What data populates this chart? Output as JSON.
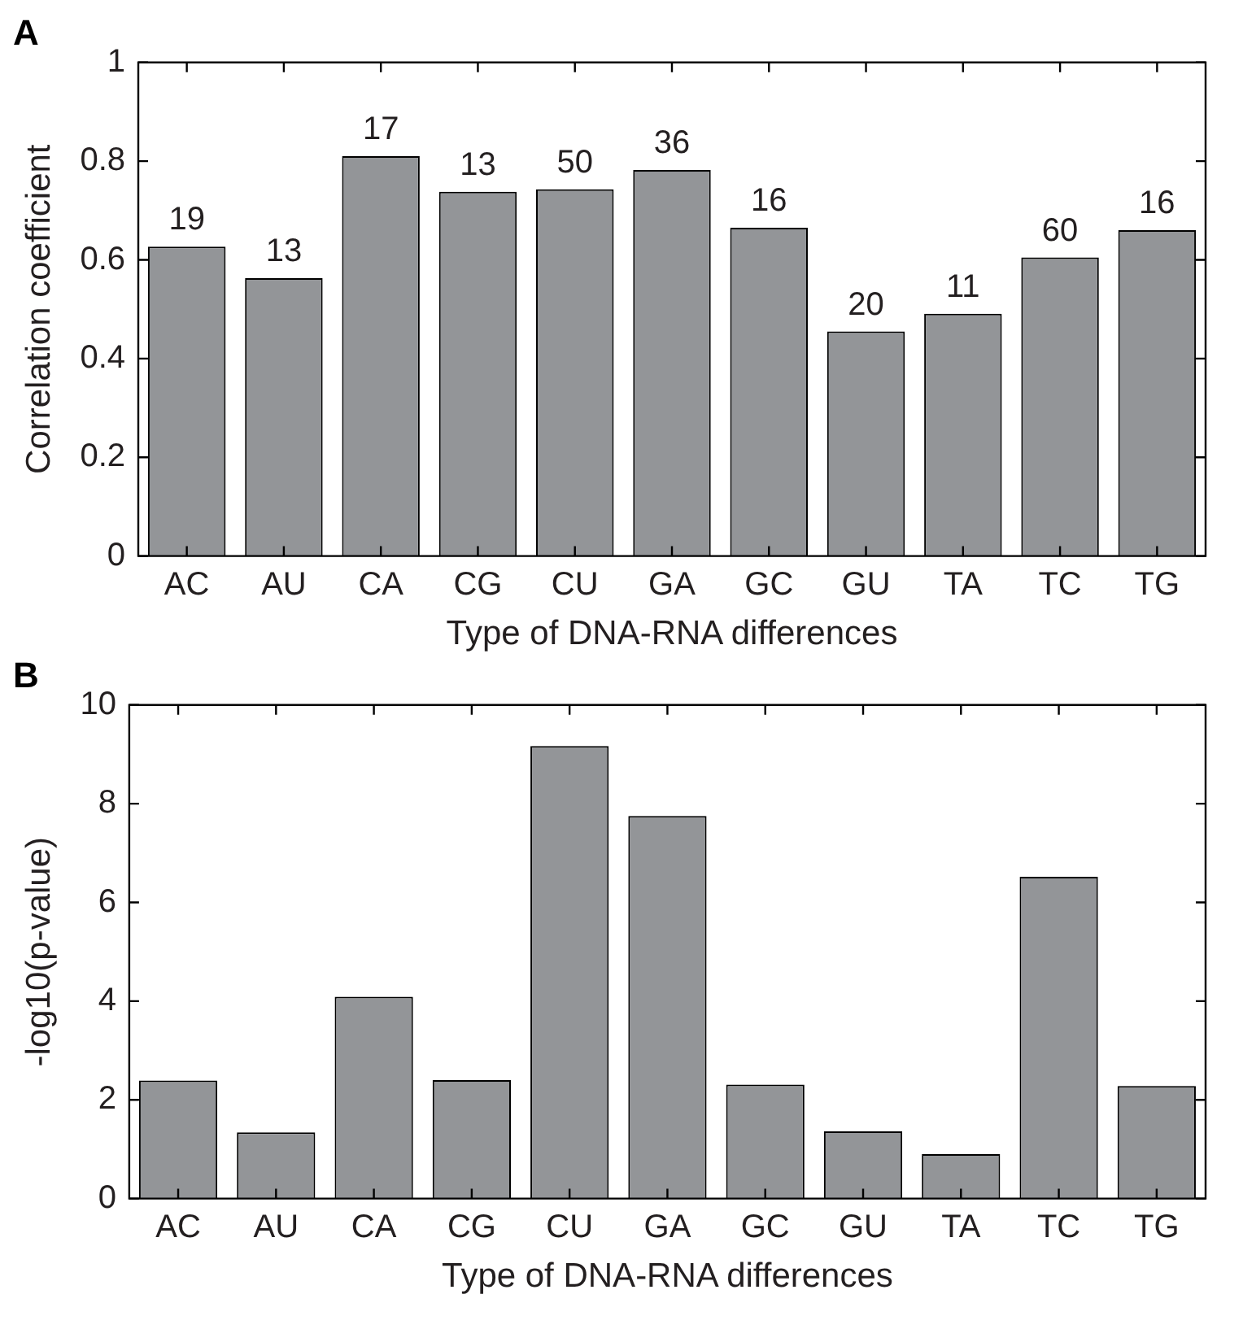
{
  "chart_data": [
    {
      "type": "bar",
      "title": "A",
      "xlabel": "Type of DNA-RNA differences",
      "ylabel": "Correlation coefficient",
      "categories": [
        "AC",
        "AU",
        "CA",
        "CG",
        "CU",
        "GA",
        "GC",
        "GU",
        "TA",
        "TC",
        "TG"
      ],
      "color": "#939598",
      "values": [
        0.627,
        0.563,
        0.81,
        0.738,
        0.743,
        0.782,
        0.665,
        0.455,
        0.491,
        0.605,
        0.66
      ],
      "annotations": [
        {
          "text": "19",
          "x": "AC",
          "y": 0.627
        },
        {
          "text": "13",
          "x": "AU",
          "y": 0.563
        },
        {
          "text": "17",
          "x": "CA",
          "y": 0.81
        },
        {
          "text": "13",
          "x": "CG",
          "y": 0.738
        },
        {
          "text": "50",
          "x": "CU",
          "y": 0.743
        },
        {
          "text": "36",
          "x": "GA",
          "y": 0.782
        },
        {
          "text": "16",
          "x": "GC",
          "y": 0.665
        },
        {
          "text": "20",
          "x": "GU",
          "y": 0.455
        },
        {
          "text": "11",
          "x": "TA",
          "y": 0.491
        },
        {
          "text": "60",
          "x": "TC",
          "y": 0.605
        },
        {
          "text": "16",
          "x": "TG",
          "y": 0.66
        }
      ],
      "ylim": [
        0,
        1
      ],
      "yticks": [
        0,
        0.2,
        0.4,
        0.6,
        0.8,
        1
      ],
      "grid": false,
      "legend": false
    },
    {
      "type": "bar",
      "title": "B",
      "xlabel": "Type of DNA-RNA differences",
      "ylabel": "-log10(p-value)",
      "categories": [
        "AC",
        "AU",
        "CA",
        "CG",
        "CU",
        "GA",
        "GC",
        "GU",
        "TA",
        "TC",
        "TG"
      ],
      "color": "#939598",
      "values": [
        2.39,
        1.34,
        4.09,
        2.4,
        9.17,
        7.75,
        2.31,
        1.36,
        0.9,
        6.52,
        2.28
      ],
      "ylim": [
        0,
        10
      ],
      "yticks": [
        0,
        2,
        4,
        6,
        8,
        10
      ],
      "grid": false,
      "legend": false
    }
  ]
}
